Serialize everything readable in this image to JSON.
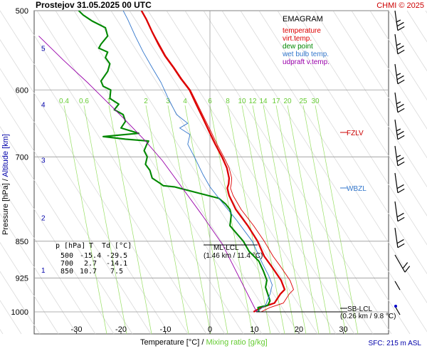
{
  "header": {
    "title": "Prostejov   31.05.2025 00 UTC",
    "credit": "CHMI © 2025"
  },
  "legend": {
    "heading": "EMAGRAM",
    "items": [
      {
        "label": "temperature",
        "color": "#dd0000"
      },
      {
        "label": "virt.temp.",
        "color": "#dd0000"
      },
      {
        "label": "dew point",
        "color": "#008800"
      },
      {
        "label": "wet bulb temp.",
        "color": "#3377cc"
      },
      {
        "label": "udpraft v.temp.",
        "color": "#9900aa"
      }
    ]
  },
  "axes": {
    "y_label_pressure": "Pressure [hPa]",
    "y_label_sep": " / ",
    "y_label_altitude": "Altitude [km]",
    "x_label_temperature": "Temperature [°C]",
    "x_label_sep": " / ",
    "x_label_mixing": "Mixing ratio [g/kg]",
    "surface": "SFC: 215 m ASL"
  },
  "table": {
    "headers": [
      "p [hPa]",
      "T",
      "Td [°C]"
    ],
    "rows": [
      [
        "500",
        "-15.4",
        "-29.5"
      ],
      [
        "700",
        "2.7",
        "-14.1"
      ],
      [
        "850",
        "10.7",
        "7.5"
      ]
    ]
  },
  "levels": {
    "fzlv": "FZLV",
    "wbzl": "WBZL",
    "ml_lcl_name": "ML-LCL",
    "ml_lcl_value": "(1.46 km / 11.4 °C)",
    "sb_lcl_name": "SB-LCL",
    "sb_lcl_value": "(0.26 km / 9.8 °C)"
  },
  "chart_data": {
    "type": "line",
    "title": "Prostejov   31.05.2025 00 UTC",
    "xlabel": "Temperature [°C]  /  Mixing ratio [g/kg]",
    "ylabel": "Pressure [hPa]  /  Altitude [km]",
    "xlim": [
      -38,
      43
    ],
    "ylim": [
      1000,
      500
    ],
    "y_scale": "log",
    "grid": true,
    "legend_position": "top-right",
    "pressure_ticks": [
      500,
      600,
      700,
      850,
      925,
      1000
    ],
    "temperature_ticks": [
      -30,
      -20,
      -10,
      0,
      10,
      20,
      30
    ],
    "altitude_ticks": [
      {
        "label": "1",
        "p": 908
      },
      {
        "label": "2",
        "p": 805
      },
      {
        "label": "3",
        "p": 705
      },
      {
        "label": "4",
        "p": 620
      },
      {
        "label": "5",
        "p": 545
      }
    ],
    "mixing_ratio_lines": [
      "0.4",
      "0.6",
      "1",
      "2",
      "3",
      "4",
      "6",
      "8",
      "10",
      "12",
      "14",
      "17",
      "20",
      "25",
      "30"
    ],
    "series": [
      {
        "name": "temperature",
        "color": "#dd0000",
        "points": [
          [
            9.8,
            1000
          ],
          [
            11.5,
            990
          ],
          [
            14.5,
            980
          ],
          [
            15.8,
            960
          ],
          [
            16.8,
            950
          ],
          [
            16.0,
            930
          ],
          [
            13.8,
            900
          ],
          [
            12.2,
            880
          ],
          [
            10.7,
            850
          ],
          [
            8.5,
            820
          ],
          [
            5.8,
            790
          ],
          [
            4.3,
            765
          ],
          [
            3.9,
            752
          ],
          [
            4.2,
            745
          ],
          [
            4.3,
            735
          ],
          [
            3.8,
            718
          ],
          [
            2.7,
            700
          ],
          [
            1.2,
            680
          ],
          [
            -0.2,
            660
          ],
          [
            -1.6,
            640
          ],
          [
            -3.1,
            620
          ],
          [
            -4.6,
            600
          ],
          [
            -6.5,
            585
          ],
          [
            -8.2,
            570
          ],
          [
            -10.1,
            555
          ],
          [
            -11.6,
            540
          ],
          [
            -13.0,
            525
          ],
          [
            -14.3,
            510
          ],
          [
            -15.4,
            500
          ]
        ]
      },
      {
        "name": "virt.temp.",
        "color": "#dd0000",
        "points": [
          [
            11.5,
            1000
          ],
          [
            13.5,
            990
          ],
          [
            16.5,
            980
          ],
          [
            17.8,
            960
          ],
          [
            18.8,
            950
          ],
          [
            18.0,
            930
          ],
          [
            15.8,
            900
          ],
          [
            14.2,
            880
          ],
          [
            12.2,
            850
          ],
          [
            9.8,
            820
          ],
          [
            7.0,
            790
          ],
          [
            5.2,
            765
          ],
          [
            4.6,
            752
          ],
          [
            4.8,
            745
          ],
          [
            4.9,
            735
          ],
          [
            4.3,
            718
          ],
          [
            3.1,
            700
          ],
          [
            1.6,
            680
          ],
          [
            0.2,
            660
          ],
          [
            -1.3,
            640
          ],
          [
            -2.8,
            620
          ],
          [
            -4.4,
            600
          ],
          [
            -6.3,
            585
          ],
          [
            -8.0,
            570
          ],
          [
            -9.9,
            555
          ],
          [
            -11.4,
            540
          ],
          [
            -12.9,
            525
          ],
          [
            -14.2,
            510
          ],
          [
            -15.3,
            500
          ]
        ]
      },
      {
        "name": "dew point",
        "color": "#008800",
        "points": [
          [
            11.0,
            1000
          ],
          [
            10.8,
            990
          ],
          [
            13.0,
            985
          ],
          [
            13.5,
            975
          ],
          [
            13.0,
            960
          ],
          [
            12.5,
            945
          ],
          [
            12.8,
            930
          ],
          [
            12.0,
            910
          ],
          [
            11.0,
            890
          ],
          [
            8.8,
            870
          ],
          [
            7.5,
            850
          ],
          [
            4.5,
            820
          ],
          [
            4.8,
            800
          ],
          [
            4.5,
            790
          ],
          [
            3.5,
            780
          ],
          [
            2.0,
            770
          ],
          [
            -3.0,
            760
          ],
          [
            -8.0,
            750
          ],
          [
            -10.5,
            748
          ],
          [
            -11.0,
            745
          ],
          [
            -13.0,
            735
          ],
          [
            -13.5,
            722
          ],
          [
            -14.5,
            712
          ],
          [
            -14.1,
            700
          ],
          [
            -14.8,
            690
          ],
          [
            -14.2,
            680
          ],
          [
            -13.8,
            675
          ],
          [
            -19.0,
            672
          ],
          [
            -24.0,
            668
          ],
          [
            -16.0,
            663
          ],
          [
            -20.0,
            655
          ],
          [
            -19.0,
            645
          ],
          [
            -19.5,
            635
          ],
          [
            -21.5,
            628
          ],
          [
            -20.5,
            620
          ],
          [
            -22.5,
            612
          ],
          [
            -22.3,
            600
          ],
          [
            -24.0,
            595
          ],
          [
            -24.5,
            588
          ],
          [
            -23.0,
            575
          ],
          [
            -22.5,
            565
          ],
          [
            -23.5,
            557
          ],
          [
            -23.0,
            550
          ],
          [
            -25.0,
            545
          ],
          [
            -24.5,
            540
          ],
          [
            -23.0,
            530
          ],
          [
            -23.5,
            520
          ],
          [
            -26.5,
            512
          ],
          [
            -28.5,
            505
          ],
          [
            -29.5,
            500
          ]
        ]
      },
      {
        "name": "wet bulb temp.",
        "color": "#3377cc",
        "points": [
          [
            10.5,
            1000
          ],
          [
            12.5,
            985
          ],
          [
            13.5,
            960
          ],
          [
            14.0,
            940
          ],
          [
            13.2,
            920
          ],
          [
            11.8,
            895
          ],
          [
            9.5,
            850
          ],
          [
            6.0,
            810
          ],
          [
            2.5,
            775
          ],
          [
            0.0,
            750
          ],
          [
            -1.5,
            730
          ],
          [
            -3.5,
            700
          ],
          [
            -5.0,
            680
          ],
          [
            -4.5,
            665
          ],
          [
            -6.8,
            655
          ],
          [
            -5.0,
            648
          ],
          [
            -7.5,
            635
          ],
          [
            -9.5,
            610
          ],
          [
            -11.0,
            590
          ],
          [
            -13.0,
            570
          ],
          [
            -15.0,
            550
          ],
          [
            -16.8,
            530
          ],
          [
            -18.5,
            510
          ],
          [
            -19.5,
            500
          ]
        ]
      },
      {
        "name": "udpraft v.temp.",
        "color": "#9900aa",
        "points": [
          [
            10.5,
            1000
          ],
          [
            2.8,
            856
          ],
          [
            -1.8,
            800
          ],
          [
            -6.2,
            752
          ],
          [
            -10.7,
            706
          ],
          [
            -14.5,
            675
          ],
          [
            -19.5,
            640
          ],
          [
            -27.5,
            590
          ],
          [
            -33.0,
            560
          ],
          [
            -38.5,
            530
          ]
        ]
      }
    ]
  }
}
